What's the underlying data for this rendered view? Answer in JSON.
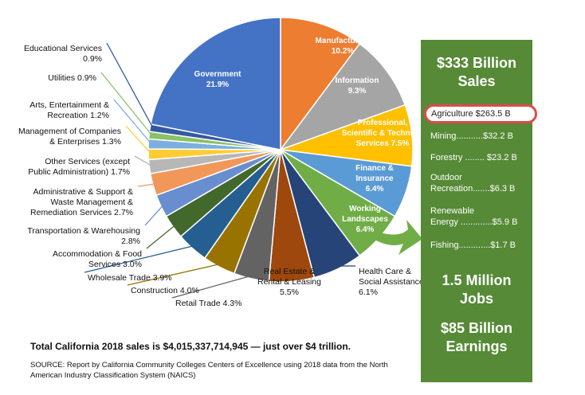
{
  "chart_data": {
    "type": "pie",
    "slices": [
      {
        "name": "Manufacturing",
        "value": 10.2,
        "label": "10.2%",
        "color": "#ed7d31"
      },
      {
        "name": "Information",
        "value": 9.3,
        "label": "9.3%",
        "color": "#a5a5a5"
      },
      {
        "name": "Professional, Scientific & Technical Services",
        "value": 7.5,
        "label": "7.5%",
        "color": "#ffc000"
      },
      {
        "name": "Finance & Insurance",
        "value": 6.4,
        "label": "6.4%",
        "color": "#5b9bd5"
      },
      {
        "name": "Working Landscapes",
        "value": 6.4,
        "label": "6.4%",
        "color": "#70ad47"
      },
      {
        "name": "Health Care & Social Assistance",
        "value": 6.1,
        "label": "6.1%",
        "color": "#264478"
      },
      {
        "name": "Real Estate & Rental & Leasing",
        "value": 5.5,
        "label": "5.5%",
        "color": "#9e480e"
      },
      {
        "name": "Retail Trade",
        "value": 4.3,
        "label": "4.3%",
        "color": "#636363"
      },
      {
        "name": "Construction",
        "value": 4.0,
        "label": "4.0%",
        "color": "#997300"
      },
      {
        "name": "Wholesale Trade",
        "value": 3.9,
        "label": "3.9%",
        "color": "#255e91"
      },
      {
        "name": "Accommodation & Food Services",
        "value": 3.0,
        "label": "3.0%",
        "color": "#43682b"
      },
      {
        "name": "Transportation & Warehousing",
        "value": 2.8,
        "label": "2.8%",
        "color": "#698ed0"
      },
      {
        "name": "Administrative & Support & Waste Management & Remediation Services",
        "value": 2.7,
        "label": "2.7%",
        "color": "#f1975a"
      },
      {
        "name": "Other Services (except Public Administration)",
        "value": 1.7,
        "label": "1.7%",
        "color": "#b7b7b7"
      },
      {
        "name": "Management of Companies & Enterprises",
        "value": 1.3,
        "label": "1.3%",
        "color": "#ffcd33"
      },
      {
        "name": "Arts, Entertainment & Recreation",
        "value": 1.2,
        "label": "1.2%",
        "color": "#7cafdd"
      },
      {
        "name": "Utilities",
        "value": 0.9,
        "label": "0.9%",
        "color": "#8cc168"
      },
      {
        "name": "Educational Services",
        "value": 0.9,
        "label": "0.9%",
        "color": "#335aa1"
      },
      {
        "name": "Government",
        "value": 21.9,
        "label": "21.9%",
        "color": "#4472c4"
      }
    ],
    "labels_inside": [
      {
        "lines": [
          "Manufacturing",
          "10.2%"
        ]
      },
      {
        "lines": [
          "Information",
          "9.3%"
        ]
      },
      {
        "lines": [
          "Professional,",
          "Scientific & Technical",
          "Services 7.5%"
        ]
      },
      {
        "lines": [
          "Finance &",
          "Insurance",
          "6.4%"
        ]
      },
      {
        "lines": [
          "Working",
          "Landscapes",
          "6.4%"
        ]
      },
      {
        "lines": [
          "Government",
          "21.9%"
        ]
      }
    ],
    "labels_outside": [
      {
        "lines": [
          "Health Care &",
          "Social Assistance",
          "6.1%"
        ]
      },
      {
        "lines": [
          "Real Estate &",
          "Rental & Leasing",
          "5.5%"
        ]
      },
      {
        "lines": [
          "Retail Trade   4.3%"
        ]
      },
      {
        "lines": [
          "Construction     4.0%"
        ]
      },
      {
        "lines": [
          "Wholesale Trade   3.9%"
        ]
      },
      {
        "lines": [
          "Accommodation & Food",
          "Services   3.0%"
        ]
      },
      {
        "lines": [
          "Transportation & Warehousing",
          "2.8%"
        ]
      },
      {
        "lines": [
          "Administrative & Support &",
          "Waste Management &",
          "Remediation Services   2.7%"
        ]
      },
      {
        "lines": [
          "Other Services (except",
          "Public Administration)   1.7%"
        ]
      },
      {
        "lines": [
          "Management of Companies",
          "& Enterprises   1.3%"
        ]
      },
      {
        "lines": [
          "Arts, Entertainment &",
          "Recreation   1.2%"
        ]
      },
      {
        "lines": [
          "Utilities   0.9%"
        ]
      },
      {
        "lines": [
          "Educational Services",
          "0.9%"
        ]
      }
    ]
  },
  "footer": {
    "total": "Total California 2018 sales is $4,015,337,714,945 — just over $4 trillion.",
    "source": "SOURCE: Report by California Community Colleges Centers of Excellence using 2018 data from the North American Industry Classification System (NAICS)"
  },
  "panel": {
    "sales": "$333 Billion\nSales",
    "agriculture": "Agriculture  $263.5 B",
    "rows": [
      "Mining...........$32.2 B",
      "Forestry ........ $23.2 B",
      "Outdoor\nRecreation.......$6.3 B",
      "Renewable\nEnergy .............$5.9 B",
      "Fishing.............$1.7 B"
    ],
    "jobs": "1.5 Million\nJobs",
    "earnings": "$85 Billion\nEarnings"
  },
  "colors": {
    "panel": "#568a36",
    "highlight_ring": "#e04a4a",
    "arrow": "#70ad47"
  }
}
